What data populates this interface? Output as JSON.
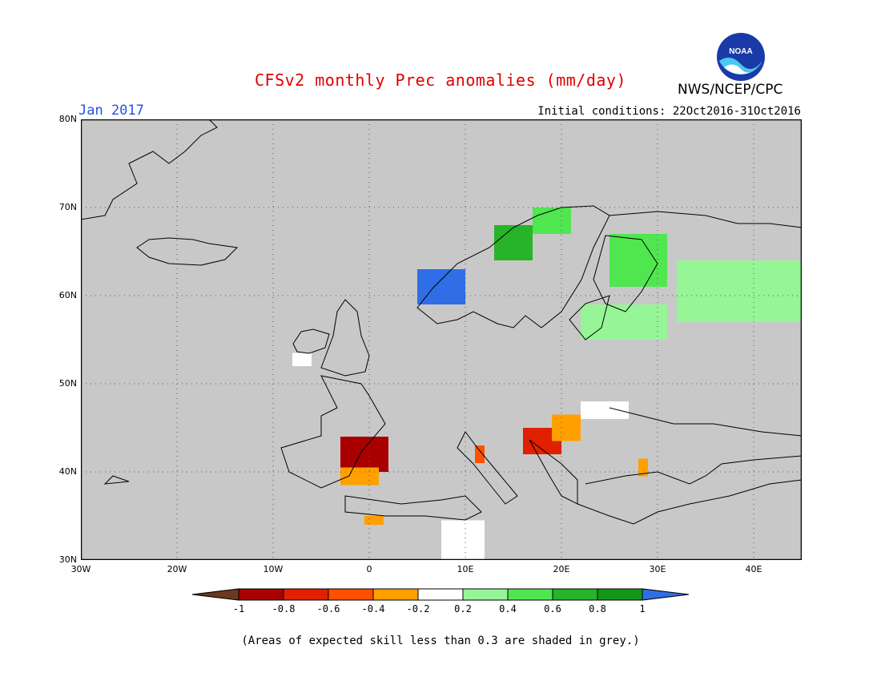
{
  "header": {
    "title": "CFSv2 monthly Prec anomalies (mm/day)",
    "month": "Jan 2017",
    "initial_conditions": "Initial conditions: 22Oct2016-31Oct2016",
    "agency": "NWS/NCEP/CPC",
    "logo_text": "NOAA"
  },
  "map": {
    "lat_labels": [
      "80N",
      "70N",
      "60N",
      "50N",
      "40N",
      "30N"
    ],
    "lon_labels": [
      "30W",
      "20W",
      "10W",
      "0",
      "10E",
      "20E",
      "30E",
      "40E"
    ],
    "lon_range": [
      -30,
      45
    ],
    "lat_range": [
      30,
      80
    ],
    "background_color": "#c8c8c8",
    "anomaly_regions": [
      {
        "name": "norway-wet",
        "lon": [
          13,
          17
        ],
        "lat": [
          64,
          68
        ],
        "value": 0.7
      },
      {
        "name": "norway-wet-north",
        "lon": [
          17,
          21
        ],
        "lat": [
          67,
          70
        ],
        "value": 0.5
      },
      {
        "name": "norway-southwest-wet",
        "lon": [
          5,
          10
        ],
        "lat": [
          59,
          63
        ],
        "value": 1.0
      },
      {
        "name": "russia-wet",
        "lon": [
          32,
          45
        ],
        "lat": [
          57,
          64
        ],
        "value": 0.3
      },
      {
        "name": "finland-wet",
        "lon": [
          25,
          31
        ],
        "lat": [
          61,
          67
        ],
        "value": 0.4
      },
      {
        "name": "baltic-wet",
        "lon": [
          22,
          31
        ],
        "lat": [
          55,
          59
        ],
        "value": 0.3
      },
      {
        "name": "spain-dry",
        "lon": [
          -3,
          2
        ],
        "lat": [
          40,
          44
        ],
        "value": -0.9
      },
      {
        "name": "spain-dry-south",
        "lon": [
          -3,
          1
        ],
        "lat": [
          38.5,
          40.5
        ],
        "value": -0.4
      },
      {
        "name": "balkans-dry",
        "lon": [
          16,
          20
        ],
        "lat": [
          42,
          45
        ],
        "value": -0.8
      },
      {
        "name": "hungary-dry",
        "lon": [
          19,
          22
        ],
        "lat": [
          43.5,
          46.5
        ],
        "value": -0.4
      },
      {
        "name": "italy-dry",
        "lon": [
          11,
          12
        ],
        "lat": [
          41,
          43
        ],
        "value": -0.5
      },
      {
        "name": "turkey-dry",
        "lon": [
          28,
          29
        ],
        "lat": [
          39.5,
          41.5
        ],
        "value": -0.4
      },
      {
        "name": "algeria-dry",
        "lon": [
          -0.5,
          1.5
        ],
        "lat": [
          34,
          35
        ],
        "value": -0.3
      },
      {
        "name": "north-africa-neutral",
        "lon": [
          7.5,
          12
        ],
        "lat": [
          30,
          34.5
        ],
        "value": 0.0
      },
      {
        "name": "ireland-neutral",
        "lon": [
          -8,
          -6
        ],
        "lat": [
          52,
          53.5
        ],
        "value": 0.0
      },
      {
        "name": "romania-neutral",
        "lon": [
          22,
          27
        ],
        "lat": [
          46,
          48
        ],
        "value": 0.0
      }
    ]
  },
  "colorbar": {
    "tick_labels": [
      "-1",
      "-0.8",
      "-0.6",
      "-0.4",
      "-0.2",
      "0.2",
      "0.4",
      "0.6",
      "0.8",
      "1"
    ],
    "colors": [
      "#6b3a1e",
      "#a80000",
      "#e02000",
      "#ff5000",
      "#ffa000",
      "#ffffff",
      "#96f596",
      "#50e650",
      "#28b428",
      "#149614",
      "#2f6ee6"
    ]
  },
  "footnote": "(Areas of expected skill less than 0.3 are shaded in grey.)"
}
